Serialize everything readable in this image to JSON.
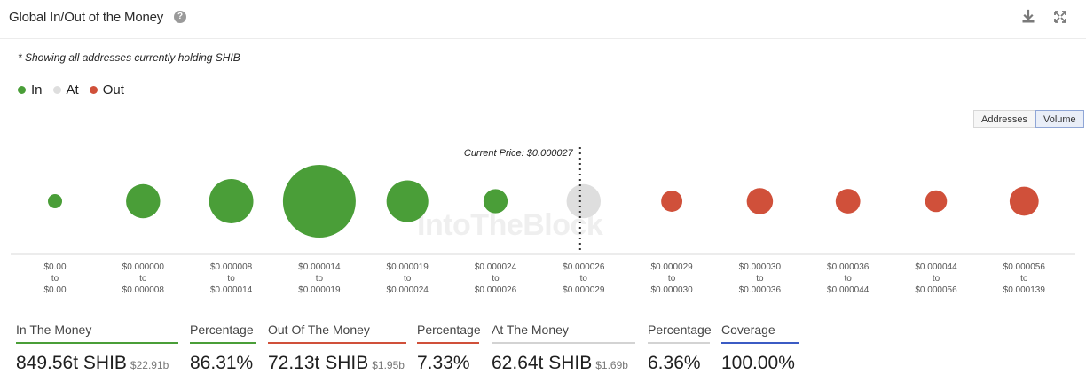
{
  "header": {
    "title": "Global In/Out of the Money",
    "help_icon": "question-circle-icon",
    "download_icon": "download-icon",
    "expand_icon": "expand-icon"
  },
  "note": "* Showing all addresses currently holding SHIB",
  "legend": [
    {
      "label": "In",
      "color": "#4a9e38"
    },
    {
      "label": "At",
      "color": "#dedede"
    },
    {
      "label": "Out",
      "color": "#d0503a"
    }
  ],
  "toggle": {
    "addresses": "Addresses",
    "volume": "Volume",
    "selected": "Volume"
  },
  "watermark": "IntoTheBlock",
  "chart_data": {
    "type": "scatter",
    "annotation": "Current Price: $0.000027",
    "categories": [
      {
        "from": "$0.00",
        "to": "$0.00",
        "status": "in",
        "relative_volume": 0.027
      },
      {
        "from": "$0.000000",
        "to": "$0.000008",
        "status": "in",
        "relative_volume": 0.22
      },
      {
        "from": "$0.000008",
        "to": "$0.000014",
        "status": "in",
        "relative_volume": 0.37
      },
      {
        "from": "$0.000014",
        "to": "$0.000019",
        "status": "in",
        "relative_volume": 1.0
      },
      {
        "from": "$0.000019",
        "to": "$0.000024",
        "status": "in",
        "relative_volume": 0.33
      },
      {
        "from": "$0.000024",
        "to": "$0.000026",
        "status": "in",
        "relative_volume": 0.11
      },
      {
        "from": "$0.000026",
        "to": "$0.000029",
        "status": "at",
        "relative_volume": 0.22
      },
      {
        "from": "$0.000029",
        "to": "$0.000030",
        "status": "out",
        "relative_volume": 0.085
      },
      {
        "from": "$0.000030",
        "to": "$0.000036",
        "status": "out",
        "relative_volume": 0.13
      },
      {
        "from": "$0.000036",
        "to": "$0.000044",
        "status": "out",
        "relative_volume": 0.115
      },
      {
        "from": "$0.000044",
        "to": "$0.000056",
        "status": "out",
        "relative_volume": 0.09
      },
      {
        "from": "$0.000056",
        "to": "$0.000139",
        "status": "out",
        "relative_volume": 0.16
      }
    ],
    "to_label": "to",
    "colors": {
      "in": "#4a9e38",
      "at": "#dedede",
      "out": "#d0503a"
    }
  },
  "stats": [
    {
      "label": "In The Money",
      "value": "849.56t SHIB",
      "sub": "$22.91b",
      "color": "#4a9e38"
    },
    {
      "label": "Percentage",
      "value": "86.31%",
      "sub": "",
      "color": "#4a9e38"
    },
    {
      "label": "Out Of The Money",
      "value": "72.13t SHIB",
      "sub": "$1.95b",
      "color": "#d0503a"
    },
    {
      "label": "Percentage",
      "value": "7.33%",
      "sub": "",
      "color": "#d0503a"
    },
    {
      "label": "At The Money",
      "value": "62.64t SHIB",
      "sub": "$1.69b",
      "color": "#d3d3d3"
    },
    {
      "label": "Percentage",
      "value": "6.36%",
      "sub": "",
      "color": "#d3d3d3"
    },
    {
      "label": "Coverage",
      "value": "100.00%",
      "sub": "",
      "color": "#3b5bc4"
    }
  ]
}
